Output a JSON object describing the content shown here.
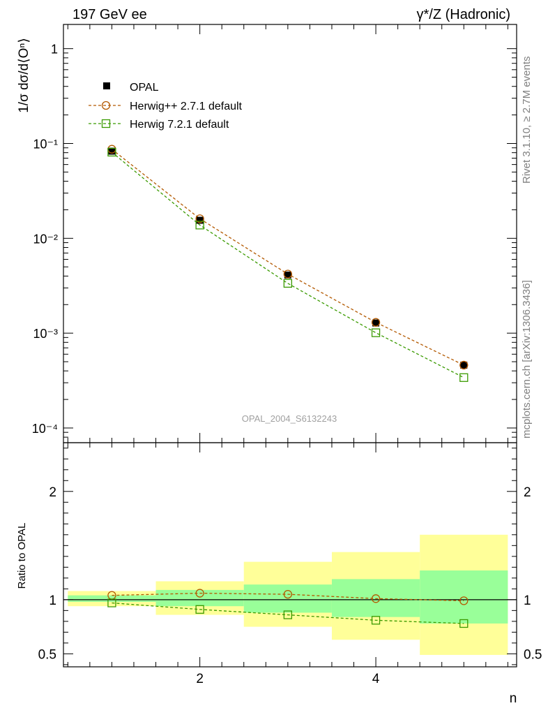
{
  "header": {
    "left": "197 GeV ee",
    "right": "γ*/Z (Hadronic)"
  },
  "side_labels": {
    "rivet": "Rivet 3.1.10, ≥ 2.7M events",
    "mcplots": "mcplots.cern.ch [arXiv:1306.3436]"
  },
  "analysis_id": "OPAL_2004_S6132243",
  "colors": {
    "data": "#000000",
    "herwigpp": "#b35900",
    "herwig7": "#3a9a00",
    "band_outer": "#ffff99",
    "band_inner": "#99ff99"
  },
  "chart_data": [
    {
      "type": "scatter",
      "ylabel": "1/σ dσ/d⟨Oⁿ⟩",
      "yscale": "log",
      "ylim": [
        7e-05,
        1.8
      ],
      "xlim": [
        0.45,
        5.6
      ],
      "y_tick_labels": [
        "1",
        "10⁻¹",
        "10⁻²",
        "10⁻³",
        "10⁻⁴"
      ],
      "legend_position": "top-left",
      "x": [
        1,
        2,
        3,
        4,
        5
      ],
      "series": [
        {
          "name": "OPAL",
          "marker": "filled-square",
          "values": [
            0.083,
            0.0155,
            0.0041,
            0.00128,
            0.00046
          ]
        },
        {
          "name": "Herwig++ 2.7.1 default",
          "marker": "open-circle",
          "values": [
            0.087,
            0.0161,
            0.0042,
            0.0013,
            0.00046
          ]
        },
        {
          "name": "Herwig 7.2.1 default",
          "marker": "open-square",
          "values": [
            0.081,
            0.0138,
            0.00335,
            0.00101,
            0.00034
          ]
        }
      ]
    },
    {
      "type": "line",
      "ylabel": "Ratio to OPAL",
      "xlabel": "n",
      "ylim": [
        0.38,
        2.45
      ],
      "xlim": [
        0.45,
        5.6
      ],
      "x_tick_labels": [
        "2",
        "4"
      ],
      "y_tick_labels": [
        "2",
        "1",
        "0.5"
      ],
      "x": [
        1,
        2,
        3,
        4,
        5
      ],
      "bins": [
        [
          0.5,
          1.5
        ],
        [
          1.5,
          2.5
        ],
        [
          2.5,
          3.5
        ],
        [
          3.5,
          4.5
        ],
        [
          4.5,
          5.5
        ]
      ],
      "band_inner": [
        [
          0.98,
          1.04
        ],
        [
          0.94,
          1.09
        ],
        [
          0.88,
          1.14
        ],
        [
          0.84,
          1.19
        ],
        [
          0.78,
          1.27
        ]
      ],
      "band_outer": [
        [
          0.94,
          1.08
        ],
        [
          0.86,
          1.17
        ],
        [
          0.75,
          1.35
        ],
        [
          0.63,
          1.44
        ],
        [
          0.49,
          1.6
        ]
      ],
      "series": [
        {
          "name": "Herwig++ 2.7.1 default",
          "values": [
            1.04,
            1.06,
            1.05,
            1.01,
            0.99
          ]
        },
        {
          "name": "Herwig 7.2.1 default",
          "values": [
            0.97,
            0.91,
            0.86,
            0.81,
            0.78
          ]
        }
      ]
    }
  ]
}
